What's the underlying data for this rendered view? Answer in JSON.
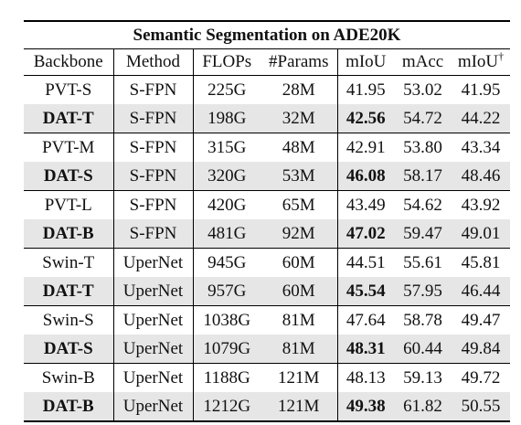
{
  "title": "Semantic Segmentation on ADE20K",
  "headers": [
    "Backbone",
    "Method",
    "FLOPs",
    "#Params",
    "mIoU",
    "mAcc",
    "mIoU"
  ],
  "dagger": "†",
  "rows": [
    {
      "backbone": "PVT-S",
      "method": "S-FPN",
      "flops": "225G",
      "params": "28M",
      "miou": "41.95",
      "macc": "53.02",
      "miou_ms": "41.95",
      "bold_backbone": false,
      "bold_miou": false,
      "shaded": false
    },
    {
      "backbone": "DAT-T",
      "method": "S-FPN",
      "flops": "198G",
      "params": "32M",
      "miou": "42.56",
      "macc": "54.72",
      "miou_ms": "44.22",
      "bold_backbone": true,
      "bold_miou": true,
      "shaded": true
    },
    {
      "backbone": "PVT-M",
      "method": "S-FPN",
      "flops": "315G",
      "params": "48M",
      "miou": "42.91",
      "macc": "53.80",
      "miou_ms": "43.34",
      "bold_backbone": false,
      "bold_miou": false,
      "shaded": false
    },
    {
      "backbone": "DAT-S",
      "method": "S-FPN",
      "flops": "320G",
      "params": "53M",
      "miou": "46.08",
      "macc": "58.17",
      "miou_ms": "48.46",
      "bold_backbone": true,
      "bold_miou": true,
      "shaded": true
    },
    {
      "backbone": "PVT-L",
      "method": "S-FPN",
      "flops": "420G",
      "params": "65M",
      "miou": "43.49",
      "macc": "54.62",
      "miou_ms": "43.92",
      "bold_backbone": false,
      "bold_miou": false,
      "shaded": false
    },
    {
      "backbone": "DAT-B",
      "method": "S-FPN",
      "flops": "481G",
      "params": "92M",
      "miou": "47.02",
      "macc": "59.47",
      "miou_ms": "49.01",
      "bold_backbone": true,
      "bold_miou": true,
      "shaded": true
    },
    {
      "backbone": "Swin-T",
      "method": "UperNet",
      "flops": "945G",
      "params": "60M",
      "miou": "44.51",
      "macc": "55.61",
      "miou_ms": "45.81",
      "bold_backbone": false,
      "bold_miou": false,
      "shaded": false
    },
    {
      "backbone": "DAT-T",
      "method": "UperNet",
      "flops": "957G",
      "params": "60M",
      "miou": "45.54",
      "macc": "57.95",
      "miou_ms": "46.44",
      "bold_backbone": true,
      "bold_miou": true,
      "shaded": true
    },
    {
      "backbone": "Swin-S",
      "method": "UperNet",
      "flops": "1038G",
      "params": "81M",
      "miou": "47.64",
      "macc": "58.78",
      "miou_ms": "49.47",
      "bold_backbone": false,
      "bold_miou": false,
      "shaded": false
    },
    {
      "backbone": "DAT-S",
      "method": "UperNet",
      "flops": "1079G",
      "params": "81M",
      "miou": "48.31",
      "macc": "60.44",
      "miou_ms": "49.84",
      "bold_backbone": true,
      "bold_miou": true,
      "shaded": true
    },
    {
      "backbone": "Swin-B",
      "method": "UperNet",
      "flops": "1188G",
      "params": "121M",
      "miou": "48.13",
      "macc": "59.13",
      "miou_ms": "49.72",
      "bold_backbone": false,
      "bold_miou": false,
      "shaded": false
    },
    {
      "backbone": "DAT-B",
      "method": "UperNet",
      "flops": "1212G",
      "params": "121M",
      "miou": "49.38",
      "macc": "61.82",
      "miou_ms": "50.55",
      "bold_backbone": true,
      "bold_miou": true,
      "shaded": true
    }
  ]
}
